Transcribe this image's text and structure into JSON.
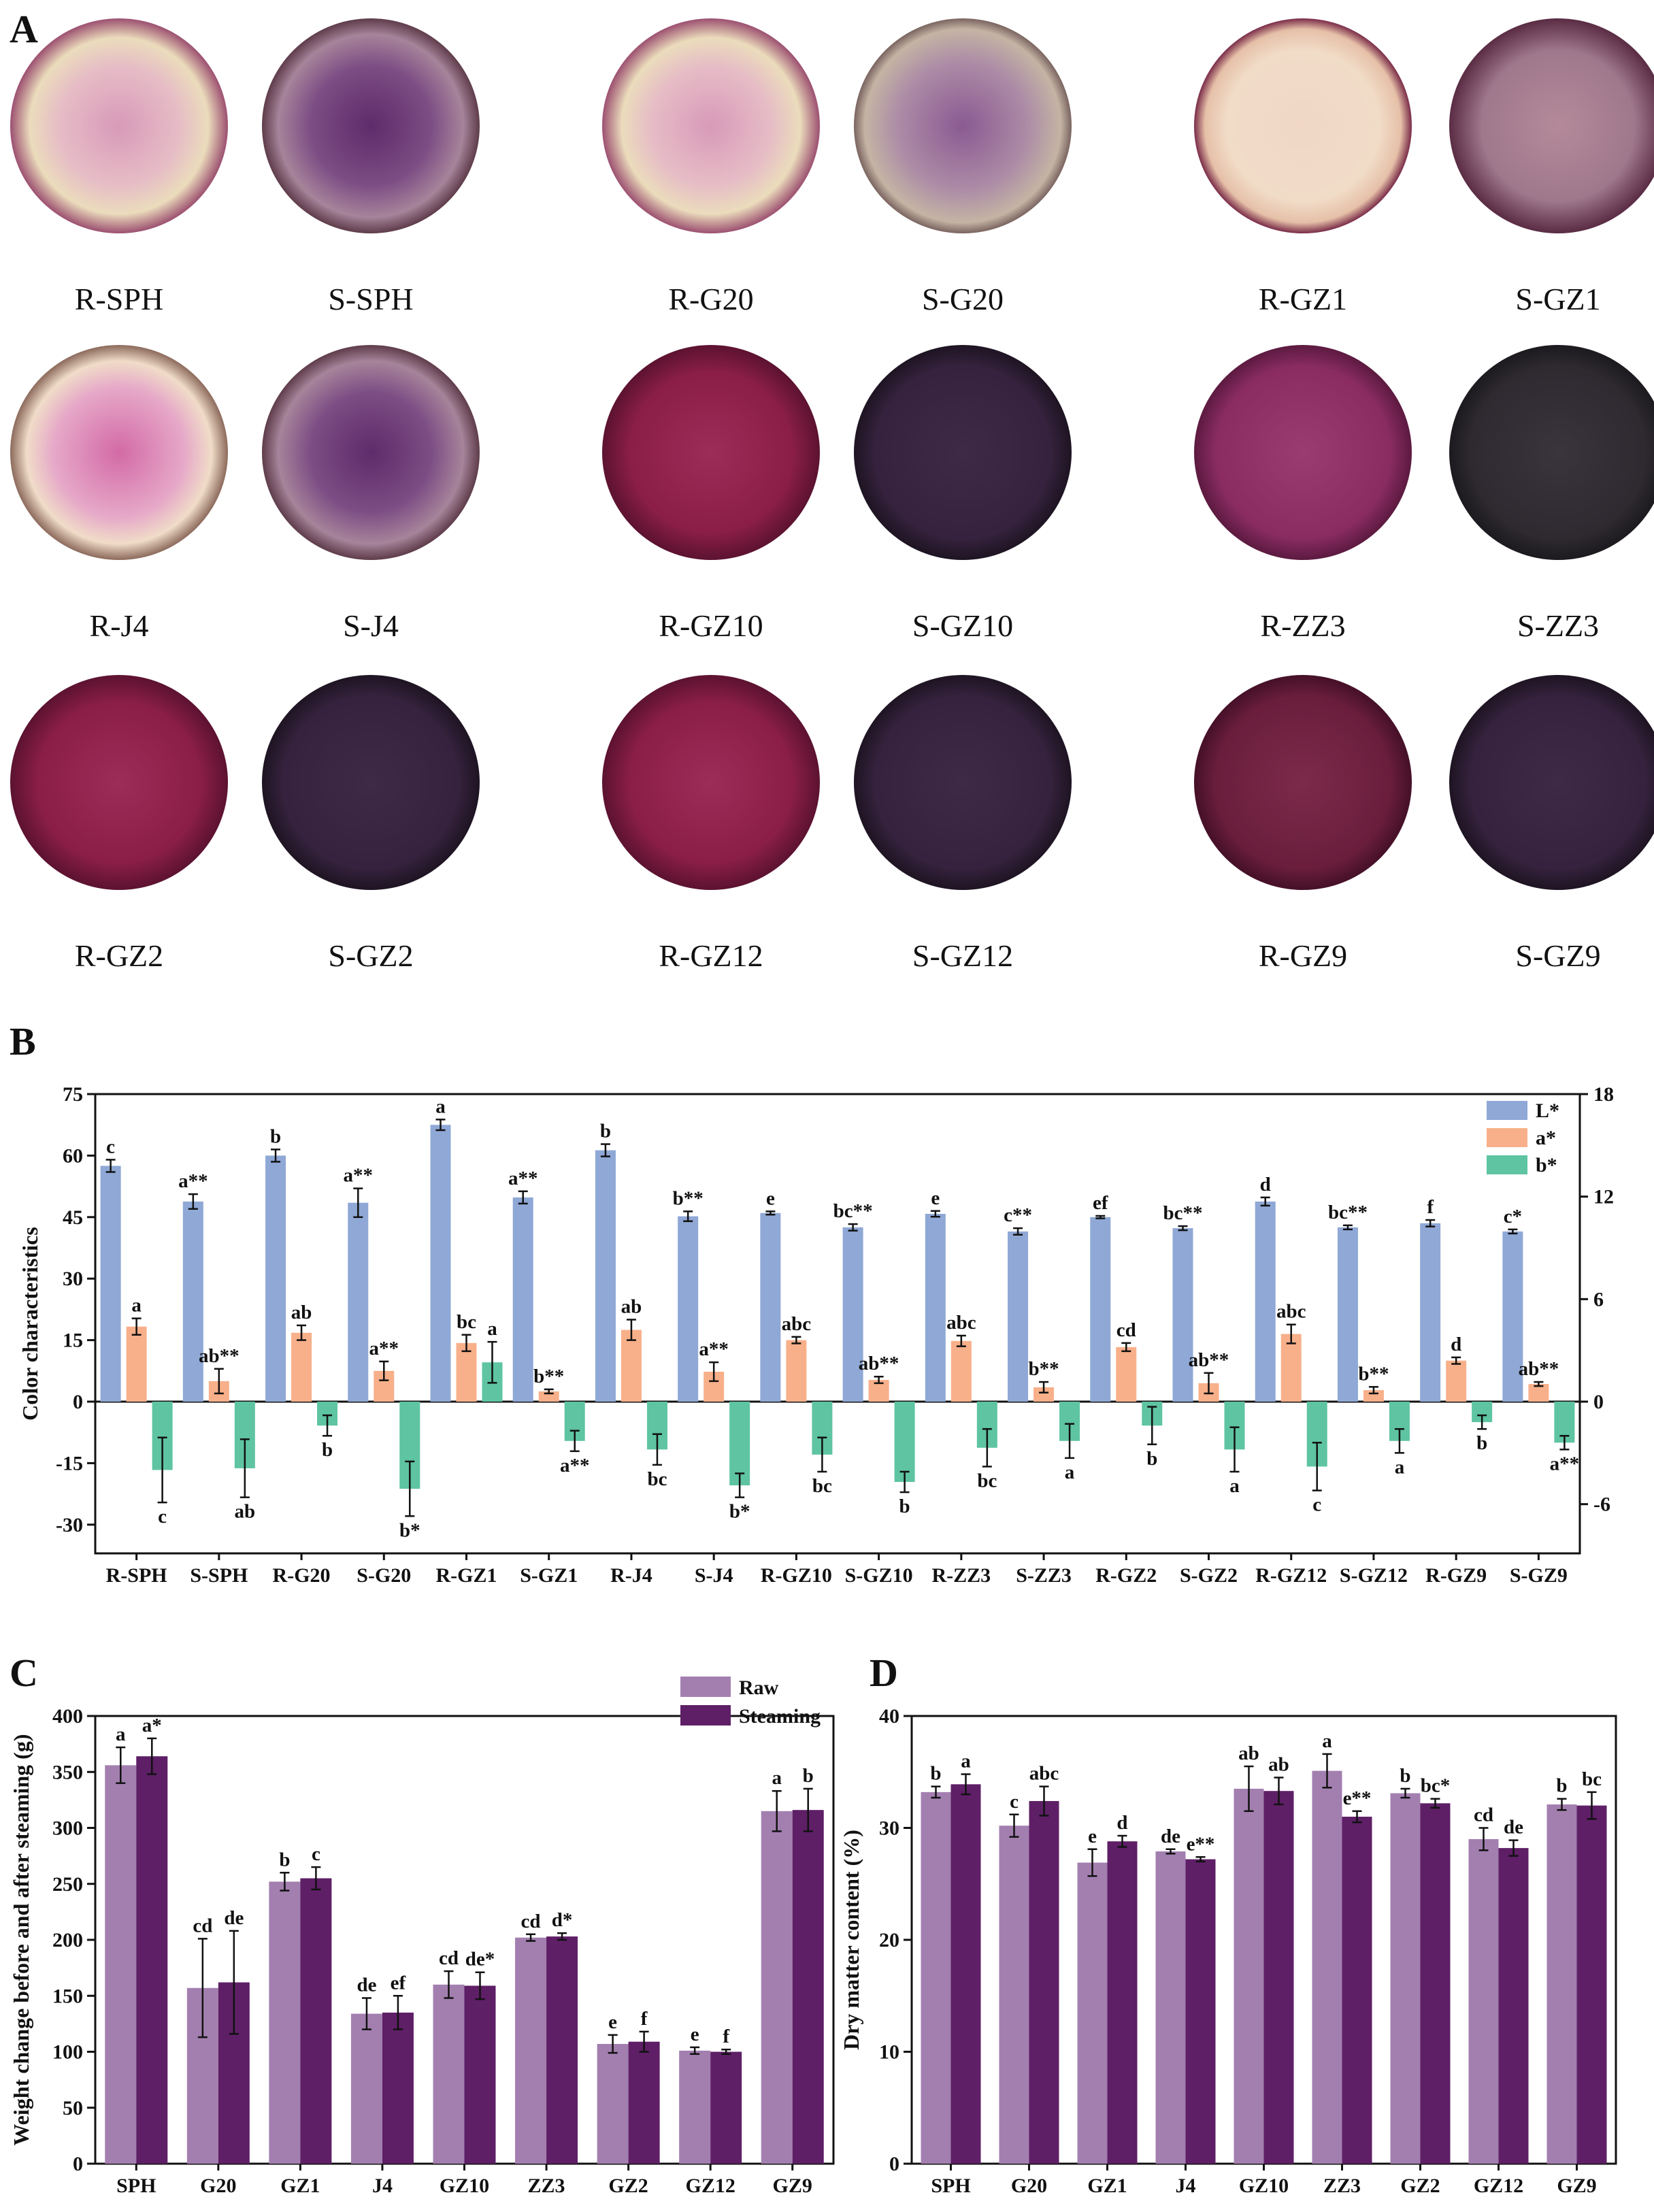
{
  "panels": {
    "a": "A",
    "b": "B",
    "c": "C",
    "d": "D"
  },
  "photo_panel": {
    "samples": [
      {
        "label": "R-SPH",
        "tone": "raw-light"
      },
      {
        "label": "S-SPH",
        "tone": "steam-mid"
      },
      {
        "label": "R-G20",
        "tone": "raw-light"
      },
      {
        "label": "S-G20",
        "tone": "steam-light"
      },
      {
        "label": "R-GZ1",
        "tone": "raw-cream"
      },
      {
        "label": "S-GZ1",
        "tone": "steam-pale"
      },
      {
        "label": "R-J4",
        "tone": "raw-pink"
      },
      {
        "label": "S-J4",
        "tone": "steam-mid"
      },
      {
        "label": "R-GZ10",
        "tone": "raw-deep"
      },
      {
        "label": "S-GZ10",
        "tone": "steam-dark"
      },
      {
        "label": "R-ZZ3",
        "tone": "raw-purple"
      },
      {
        "label": "S-ZZ3",
        "tone": "steam-black"
      },
      {
        "label": "R-GZ2",
        "tone": "raw-deep"
      },
      {
        "label": "S-GZ2",
        "tone": "steam-dark"
      },
      {
        "label": "R-GZ12",
        "tone": "raw-deep"
      },
      {
        "label": "S-GZ12",
        "tone": "steam-dark"
      },
      {
        "label": "R-GZ9",
        "tone": "raw-wine"
      },
      {
        "label": "S-GZ9",
        "tone": "steam-dark"
      }
    ]
  },
  "chart_data": [
    {
      "id": "B",
      "type": "bar",
      "ylabel": "Color characteristics",
      "ylim": [
        -37,
        75
      ],
      "yticks": [
        -30,
        -15,
        0,
        15,
        30,
        45,
        60,
        75
      ],
      "y2lim": [
        -8.88,
        18
      ],
      "y2ticks": [
        -6,
        0,
        6,
        12,
        18
      ],
      "legend_position": "top-right",
      "categories": [
        "R-SPH",
        "S-SPH",
        "R-G20",
        "S-G20",
        "R-GZ1",
        "S-GZ1",
        "R-J4",
        "S-J4",
        "R-GZ10",
        "S-GZ10",
        "R-ZZ3",
        "S-ZZ3",
        "R-GZ2",
        "S-GZ2",
        "R-GZ12",
        "S-GZ12",
        "R-GZ9",
        "S-GZ9"
      ],
      "series": [
        {
          "name": "L*",
          "color": "#8fa8d6",
          "values": [
            57.5,
            48.8,
            60,
            48.5,
            67.5,
            49.8,
            61.3,
            45.2,
            46,
            42.5,
            45.8,
            41.5,
            45,
            42.3,
            48.8,
            42.5,
            43.5,
            41.5
          ],
          "errors": [
            1.5,
            1.8,
            1.5,
            3.5,
            1.3,
            1.5,
            1.5,
            1.2,
            0.4,
            0.8,
            0.7,
            0.8,
            0.3,
            0.5,
            1.0,
            0.5,
            0.8,
            0.5
          ],
          "letters": [
            "c",
            "a**",
            "b",
            "a**",
            "a",
            "a**",
            "b",
            "b**",
            "e",
            "bc**",
            "e",
            "c**",
            "ef",
            "bc**",
            "d",
            "bc**",
            "f",
            "c*"
          ]
        },
        {
          "name": "a*",
          "color": "#f8b08a",
          "values": [
            18.3,
            5,
            16.8,
            7.5,
            14.3,
            2.5,
            17.5,
            7.3,
            15,
            5.3,
            14.8,
            3.5,
            13.3,
            4.5,
            16.5,
            2.8,
            10,
            4.3
          ],
          "errors": [
            2,
            3,
            1.8,
            2.3,
            2,
            0.5,
            2.5,
            2.3,
            0.8,
            0.8,
            1.3,
            1.3,
            1,
            2.5,
            2.3,
            0.8,
            0.8,
            0.5
          ],
          "letters": [
            "a",
            "ab**",
            "ab",
            "a**",
            "bc",
            "b**",
            "ab",
            "a**",
            "abc",
            "ab**",
            "abc",
            "b**",
            "cd",
            "ab**",
            "abc",
            "b**",
            "d",
            "ab**"
          ]
        },
        {
          "name": "b*",
          "color": "#5ec4a2",
          "values": [
            -4,
            -3.9,
            -1.4,
            -5.1,
            2.3,
            -2.3,
            -2.8,
            -4.9,
            -3.1,
            -4.7,
            -2.7,
            -2.3,
            -1.4,
            -2.8,
            -3.8,
            -2.3,
            -1.2,
            -2.4
          ],
          "errors": [
            1.9,
            1.7,
            0.6,
            1.6,
            1.2,
            0.6,
            0.9,
            0.7,
            1.0,
            0.6,
            1.1,
            1.0,
            1.1,
            1.3,
            1.4,
            0.7,
            0.4,
            0.4
          ],
          "letters": [
            "c",
            "ab",
            "b",
            "b*",
            "a",
            "a**",
            "bc",
            "b*",
            "bc",
            "b",
            "bc",
            "a",
            "b",
            "a",
            "c",
            "a",
            "b",
            "a**"
          ]
        }
      ]
    },
    {
      "id": "C",
      "type": "bar",
      "ylabel": "Weight change before and after steaming (g)",
      "ylim": [
        0,
        400
      ],
      "yticks": [
        0,
        50,
        100,
        150,
        200,
        250,
        300,
        350,
        400
      ],
      "legend_position": "top-right",
      "categories": [
        "SPH",
        "G20",
        "GZ1",
        "J4",
        "GZ10",
        "ZZ3",
        "GZ2",
        "GZ12",
        "GZ9"
      ],
      "series": [
        {
          "name": "Raw",
          "color": "#a37fb0",
          "values": [
            356,
            157,
            252,
            134,
            160,
            202,
            107,
            101,
            315
          ],
          "errors": [
            16,
            44,
            8,
            14,
            12,
            3,
            8,
            3,
            18
          ],
          "letters": [
            "a",
            "cd",
            "b",
            "de",
            "cd",
            "cd",
            "e",
            "e",
            "a"
          ]
        },
        {
          "name": "Steaming",
          "color": "#5e1f66",
          "values": [
            364,
            162,
            255,
            135,
            159,
            203,
            109,
            100,
            316
          ],
          "errors": [
            16,
            46,
            10,
            15,
            12,
            3,
            9,
            2,
            19
          ],
          "letters": [
            "a*",
            "de",
            "c",
            "ef",
            "de*",
            "d*",
            "f",
            "f",
            "b"
          ]
        }
      ]
    },
    {
      "id": "D",
      "type": "bar",
      "ylabel": "Dry matter content (%)",
      "ylim": [
        0,
        40
      ],
      "yticks": [
        0,
        10,
        20,
        30,
        40
      ],
      "categories": [
        "SPH",
        "G20",
        "GZ1",
        "J4",
        "GZ10",
        "ZZ3",
        "GZ2",
        "GZ12",
        "GZ9"
      ],
      "series": [
        {
          "name": "Raw",
          "color": "#a37fb0",
          "values": [
            33.2,
            30.2,
            26.9,
            27.9,
            33.5,
            35.1,
            33.1,
            29,
            32.1
          ],
          "errors": [
            0.5,
            1,
            1.2,
            0.2,
            2,
            1.5,
            0.4,
            1,
            0.5
          ],
          "letters": [
            "b",
            "c",
            "e",
            "de",
            "ab",
            "a",
            "b",
            "cd",
            "b"
          ]
        },
        {
          "name": "Steaming",
          "color": "#5e1f66",
          "values": [
            33.9,
            32.4,
            28.8,
            27.2,
            33.3,
            31,
            32.2,
            28.2,
            32
          ],
          "errors": [
            0.9,
            1.3,
            0.5,
            0.2,
            1.2,
            0.5,
            0.4,
            0.7,
            1.2
          ],
          "letters": [
            "a",
            "abc",
            "d",
            "e**",
            "ab",
            "e**",
            "bc*",
            "de",
            "bc"
          ]
        }
      ]
    }
  ]
}
